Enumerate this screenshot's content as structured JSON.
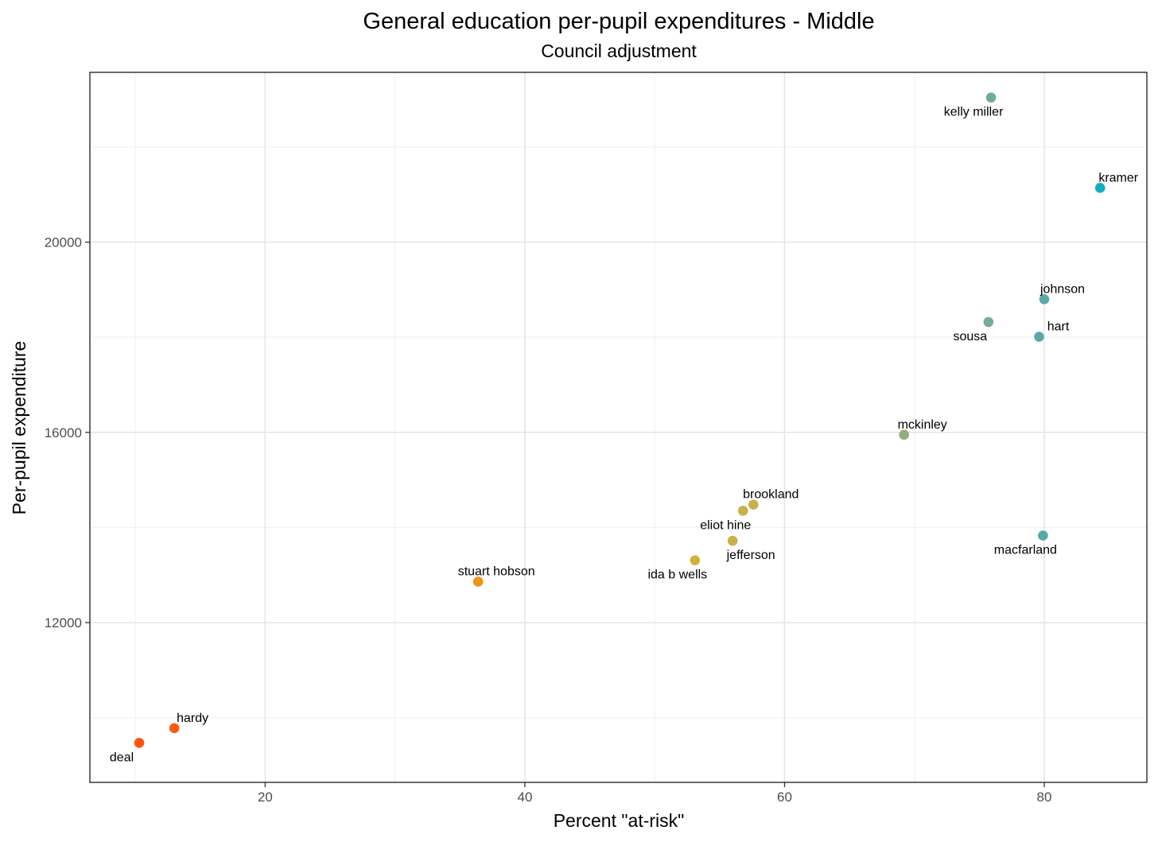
{
  "chart_data": {
    "type": "scatter",
    "title": "General education per-pupil expenditures - Middle",
    "subtitle": "Council adjustment",
    "xlabel": "Percent \"at-risk\"",
    "ylabel": "Per-pupil expenditure",
    "xlim": [
      6.5,
      87.9
    ],
    "ylim": [
      8640,
      23570
    ],
    "x_ticks": [
      20,
      40,
      60,
      80
    ],
    "y_ticks": [
      12000,
      16000,
      20000
    ],
    "grid": true,
    "legend": "none",
    "points": [
      {
        "label": "kelly miller",
        "x": 75.9,
        "y": 23040,
        "color": "#6fad99"
      },
      {
        "label": "kramer",
        "x": 84.3,
        "y": 21140,
        "color": "#14adbf"
      },
      {
        "label": "johnson",
        "x": 80.0,
        "y": 18800,
        "color": "#5aa9a8"
      },
      {
        "label": "sousa",
        "x": 75.7,
        "y": 18320,
        "color": "#73ad97"
      },
      {
        "label": "hart",
        "x": 79.6,
        "y": 18010,
        "color": "#55a9ab"
      },
      {
        "label": "mckinley",
        "x": 69.2,
        "y": 15950,
        "color": "#94ac7c"
      },
      {
        "label": "brookland",
        "x": 57.6,
        "y": 14480,
        "color": "#c8b14b"
      },
      {
        "label": "eliot hine",
        "x": 56.8,
        "y": 14350,
        "color": "#c9b04b"
      },
      {
        "label": "macfarland",
        "x": 79.9,
        "y": 13830,
        "color": "#55a9aa"
      },
      {
        "label": "jefferson",
        "x": 56.0,
        "y": 13720,
        "color": "#cbb046"
      },
      {
        "label": "ida b wells",
        "x": 53.1,
        "y": 13310,
        "color": "#d5b03a"
      },
      {
        "label": "stuart hobson",
        "x": 36.4,
        "y": 12860,
        "color": "#f19512"
      },
      {
        "label": "hardy",
        "x": 13.0,
        "y": 9780,
        "color": "#ff5a10"
      },
      {
        "label": "deal",
        "x": 10.3,
        "y": 9470,
        "color": "#ff5512"
      }
    ]
  }
}
